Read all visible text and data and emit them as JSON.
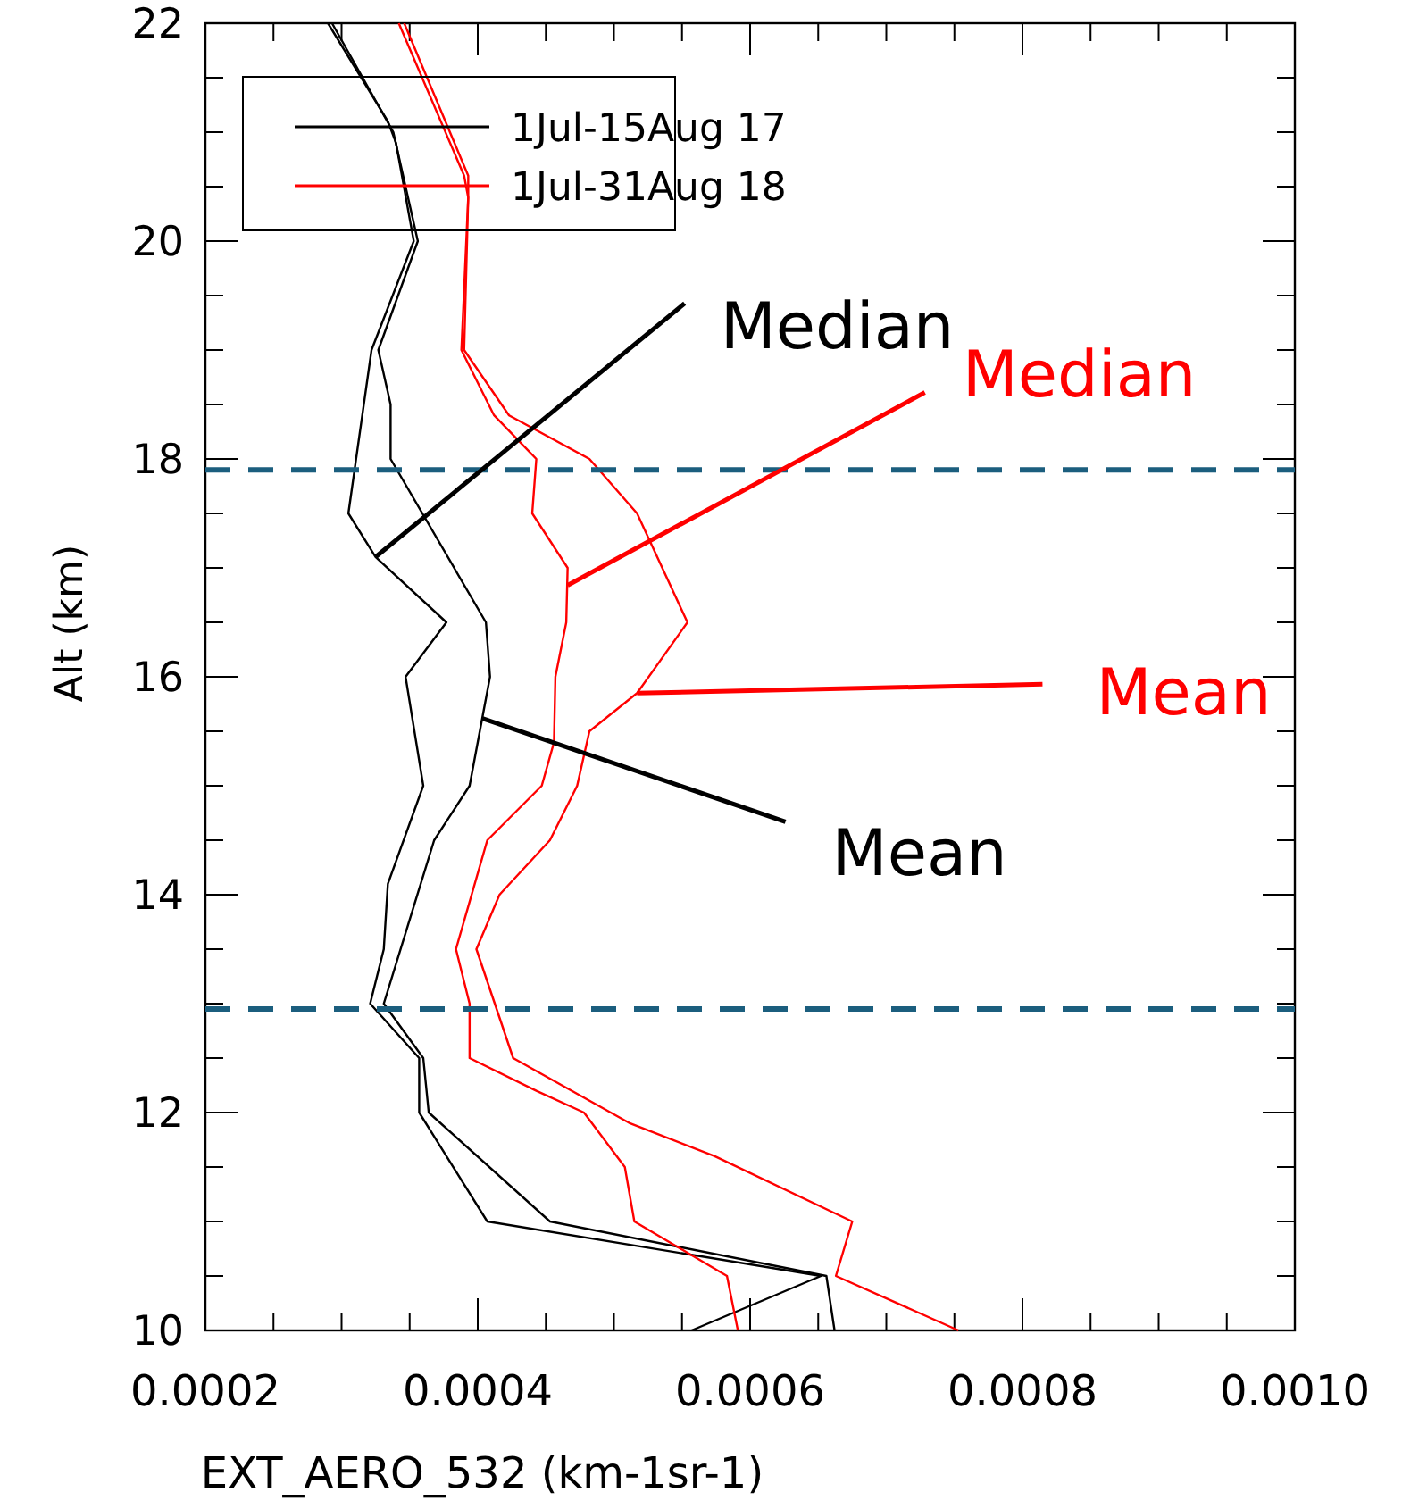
{
  "chart_data": {
    "type": "line",
    "xlabel": "EXT_AERO_532 (km-1sr-1)",
    "ylabel": "Alt (km)",
    "xlim": [
      0.0002,
      0.001
    ],
    "ylim": [
      10,
      22
    ],
    "xticks": [
      {
        "value": 0.0002,
        "label": "0.0002"
      },
      {
        "value": 0.00025,
        "label": null
      },
      {
        "value": 0.0003,
        "label": null
      },
      {
        "value": 0.00035,
        "label": null
      },
      {
        "value": 0.0004,
        "label": "0.0004"
      },
      {
        "value": 0.00045,
        "label": null
      },
      {
        "value": 0.0005,
        "label": null
      },
      {
        "value": 0.00055,
        "label": null
      },
      {
        "value": 0.0006,
        "label": "0.0006"
      },
      {
        "value": 0.00065,
        "label": null
      },
      {
        "value": 0.0007,
        "label": null
      },
      {
        "value": 0.00075,
        "label": null
      },
      {
        "value": 0.0008,
        "label": "0.0008"
      },
      {
        "value": 0.00085,
        "label": null
      },
      {
        "value": 0.0009,
        "label": null
      },
      {
        "value": 0.00095,
        "label": null
      },
      {
        "value": 0.001,
        "label": "0.0010"
      }
    ],
    "yticks": [
      10,
      {
        "value": 10.5,
        "label": null
      },
      {
        "value": 11,
        "label": null
      },
      {
        "value": 11.5,
        "label": null
      },
      12,
      {
        "value": 12.5,
        "label": null
      },
      {
        "value": 13,
        "label": null
      },
      {
        "value": 13.5,
        "label": null
      },
      14,
      {
        "value": 14.5,
        "label": null
      },
      {
        "value": 15,
        "label": null
      },
      {
        "value": 15.5,
        "label": null
      },
      16,
      {
        "value": 16.5,
        "label": null
      },
      {
        "value": 17,
        "label": null
      },
      {
        "value": 17.5,
        "label": null
      },
      18,
      {
        "value": 18.5,
        "label": null
      },
      {
        "value": 19,
        "label": null
      },
      {
        "value": 19.5,
        "label": null
      },
      20,
      {
        "value": 20.5,
        "label": null
      },
      {
        "value": 21,
        "label": null
      },
      {
        "value": 21.5,
        "label": null
      },
      22
    ],
    "grid": false,
    "legend": "top left",
    "marker": "none",
    "line_style": "solid",
    "series": [
      {
        "name": "1Jul-15Aug 17",
        "color": "#000000",
        "x": [
          0.00029,
          0.000334,
          0.00034,
          0.000353,
          0.000322,
          0.000305,
          0.000325,
          0.000377,
          0.000347,
          0.00036,
          0.000334,
          0.000331,
          0.000321,
          0.000357,
          0.000357,
          0.000407,
          0.000652,
          0.000557
        ],
        "values": [
          22.0,
          21.1,
          20.9,
          20.0,
          19.0,
          17.5,
          17.1,
          16.5,
          16.0,
          15.0,
          14.1,
          13.5,
          13.0,
          12.5,
          12.0,
          11.0,
          10.5,
          10.0
        ]
      },
      {
        "color": "#000000",
        "x": [
          0.000293,
          0.000338,
          0.000356,
          0.000327,
          0.000336,
          0.000336,
          0.000406,
          0.000409,
          0.000394,
          0.000368,
          0.000331,
          0.00036,
          0.000364,
          0.000453,
          0.000656,
          0.000662
        ],
        "values": [
          22.0,
          21.0,
          20.0,
          19.0,
          18.5,
          18.0,
          16.5,
          16.0,
          15.0,
          14.5,
          13.0,
          12.5,
          12.0,
          11.0,
          10.5,
          10.0
        ]
      },
      {
        "name": "1Jul-31Aug 18",
        "color": "#ff0000",
        "x": [
          0.000342,
          0.00039,
          0.000393,
          0.000388,
          0.000412,
          0.000443,
          0.00044,
          0.000466,
          0.000465,
          0.000457,
          0.000456,
          0.000447,
          0.000407,
          0.000384,
          0.000394,
          0.000394,
          0.000443,
          0.000478,
          0.000508,
          0.000515,
          0.000583,
          0.000591
        ],
        "values": [
          22.0,
          20.6,
          20.4,
          19.0,
          18.4,
          18.0,
          17.5,
          17.0,
          16.5,
          16.0,
          15.4,
          15.0,
          14.5,
          13.5,
          13.0,
          12.5,
          12.2,
          12.0,
          11.5,
          11.0,
          10.5,
          10.0
        ]
      },
      {
        "color": "#ff0000",
        "x": [
          0.000346,
          0.000393,
          0.000393,
          0.00039,
          0.000423,
          0.000482,
          0.000517,
          0.000554,
          0.000517,
          0.000482,
          0.000473,
          0.000453,
          0.000416,
          0.000399,
          0.000426,
          0.000512,
          0.000574,
          0.000675,
          0.000663,
          0.000753
        ],
        "values": [
          22.0,
          20.6,
          20.4,
          19.0,
          18.4,
          18.0,
          17.5,
          16.5,
          15.85,
          15.5,
          15.0,
          14.5,
          14.0,
          13.5,
          12.5,
          11.9,
          11.6,
          11.0,
          10.5,
          10.0
        ]
      }
    ],
    "ref_lines": [
      {
        "axis": "y",
        "value": 17.9,
        "color": "#1b5e7e",
        "line_style": "dashed"
      },
      {
        "axis": "y",
        "value": 12.95,
        "color": "#1b5e7e",
        "line_style": "dashed"
      }
    ],
    "annotations": [
      {
        "text": "Median",
        "x": 0.000325,
        "y": 17.1
      },
      {
        "text": "Median",
        "x": 0.000466,
        "y": 16.84
      },
      {
        "text": "Mean",
        "x": 0.000517,
        "y": 15.85
      },
      {
        "text": "Mean",
        "x": 0.000403,
        "y": 15.62
      }
    ]
  }
}
